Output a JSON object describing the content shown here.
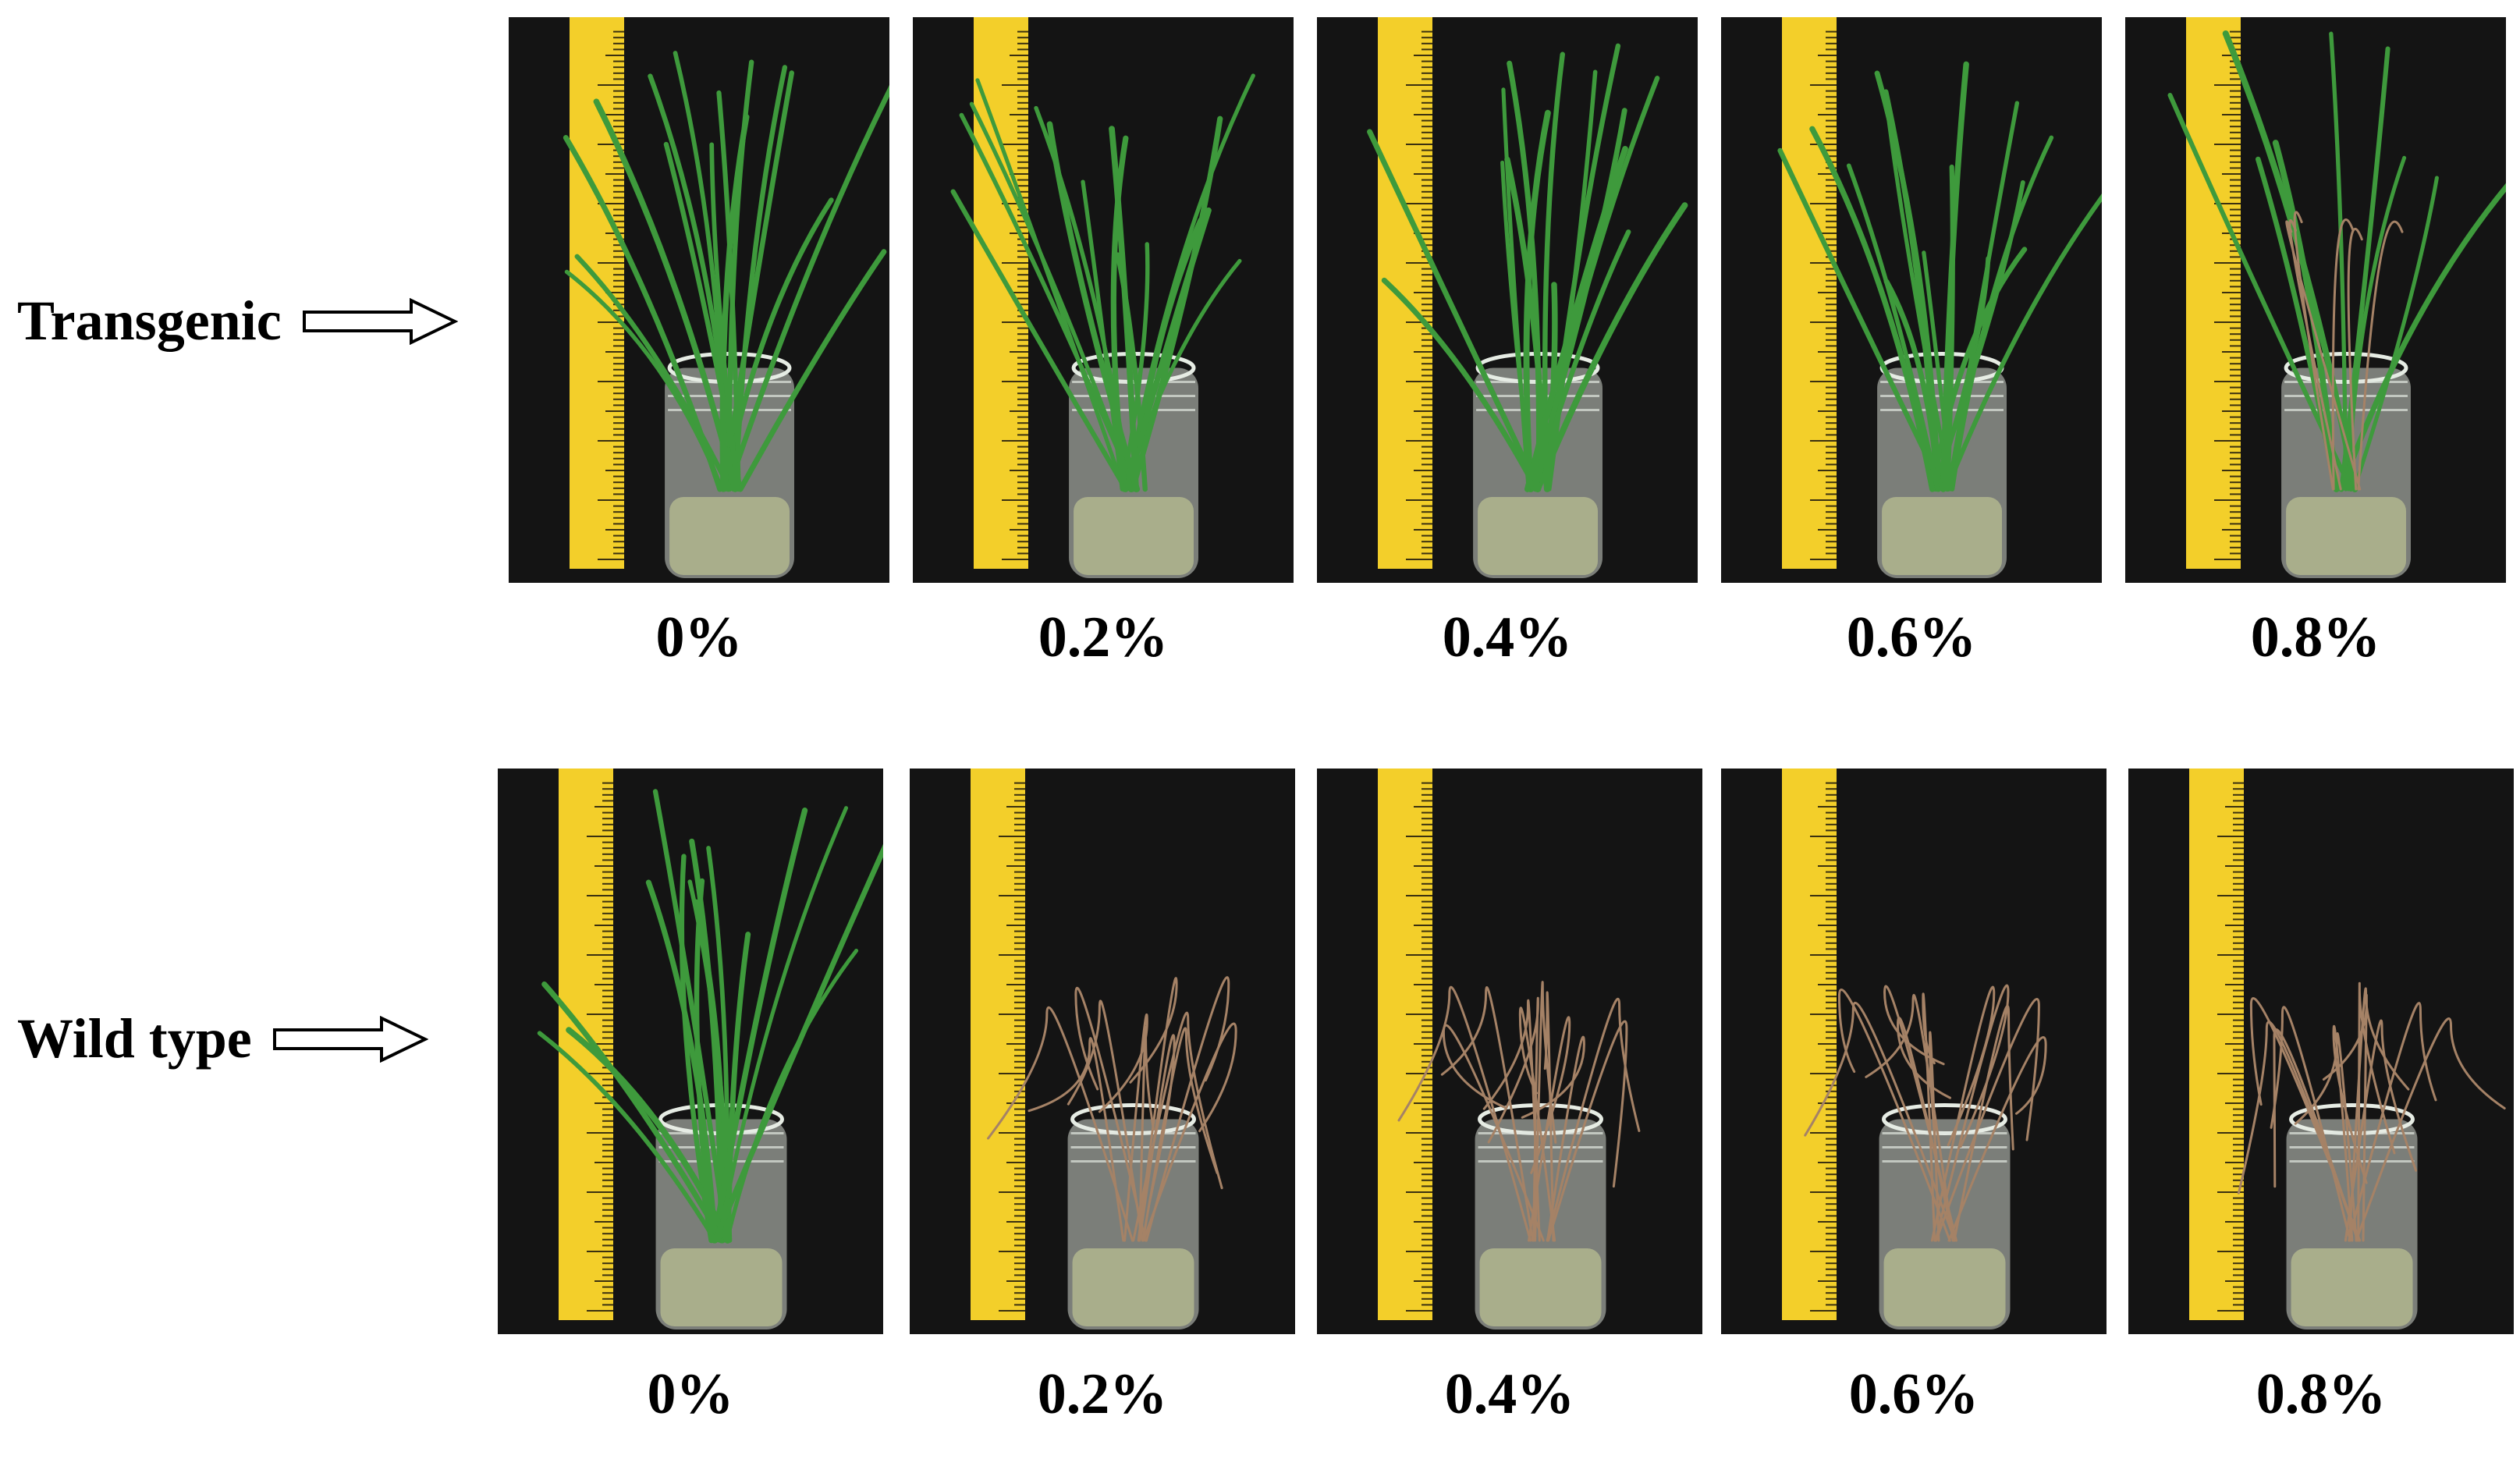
{
  "rows": [
    {
      "label": "Transgenic",
      "panels": [
        {
          "concentration": "0%",
          "condition": "healthy"
        },
        {
          "concentration": "0.2%",
          "condition": "healthy"
        },
        {
          "concentration": "0.4%",
          "condition": "healthy"
        },
        {
          "concentration": "0.6%",
          "condition": "healthy"
        },
        {
          "concentration": "0.8%",
          "condition": "partly-wilted"
        }
      ]
    },
    {
      "label": "Wild type",
      "panels": [
        {
          "concentration": "0%",
          "condition": "healthy"
        },
        {
          "concentration": "0.2%",
          "condition": "wilted"
        },
        {
          "concentration": "0.4%",
          "condition": "wilted"
        },
        {
          "concentration": "0.6%",
          "condition": "wilted"
        },
        {
          "concentration": "0.8%",
          "condition": "wilted"
        }
      ]
    }
  ],
  "colors": {
    "background": "#141414",
    "ruler": "#f3cf2a",
    "healthy_leaf": "#3e9a3c",
    "wilted_leaf": "#a58266"
  },
  "icons": [
    "arrow-right-icon",
    "ruler-icon",
    "jar-icon",
    "plant-icon"
  ]
}
